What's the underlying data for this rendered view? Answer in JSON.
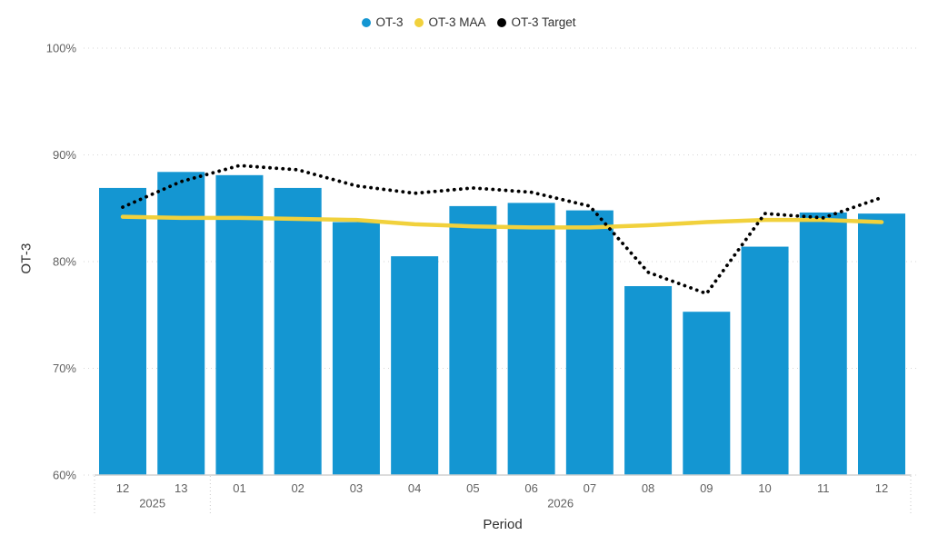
{
  "legend": {
    "items": [
      {
        "label": "OT-3",
        "color": "#1496D2"
      },
      {
        "label": "OT-3 MAA",
        "color": "#F1D13C"
      },
      {
        "label": "OT-3 Target",
        "color": "#000000"
      }
    ]
  },
  "chart_data": {
    "type": "combo",
    "categories": [
      "12",
      "13",
      "01",
      "02",
      "03",
      "04",
      "05",
      "06",
      "07",
      "08",
      "09",
      "10",
      "11",
      "12"
    ],
    "year_groups": [
      {
        "label": "2025",
        "span": 2
      },
      {
        "label": "2026",
        "span": 12
      }
    ],
    "series": [
      {
        "name": "OT-3",
        "type": "bar",
        "color": "#1496D2",
        "values": [
          86.9,
          88.4,
          88.1,
          86.9,
          83.7,
          80.5,
          85.2,
          85.5,
          84.8,
          77.7,
          75.3,
          81.4,
          84.6,
          84.5
        ]
      },
      {
        "name": "OT-3 MAA",
        "type": "line",
        "color": "#F1D13C",
        "values": [
          84.2,
          84.1,
          84.1,
          84.0,
          83.9,
          83.5,
          83.3,
          83.2,
          83.2,
          83.4,
          83.7,
          83.9,
          83.9,
          83.7
        ]
      },
      {
        "name": "OT-3 Target",
        "type": "dotted_line",
        "color": "#000000",
        "values": [
          85.1,
          87.5,
          89.0,
          88.6,
          87.1,
          86.4,
          86.9,
          86.5,
          85.2,
          79.0,
          77.0,
          84.5,
          84.1,
          86.0
        ]
      }
    ],
    "title": "",
    "xlabel": "Period",
    "ylabel": "OT-3",
    "ylim": [
      60,
      100
    ],
    "y_ticks": [
      100,
      90,
      80,
      70,
      60
    ],
    "y_tick_suffix": "%",
    "grid": true,
    "legend_position": "top-center"
  },
  "colors": {
    "grid": "#D6D6D6",
    "axis_line": "#D0D0D0",
    "tick_text": "#616161",
    "separator": "#C9C9C9"
  }
}
